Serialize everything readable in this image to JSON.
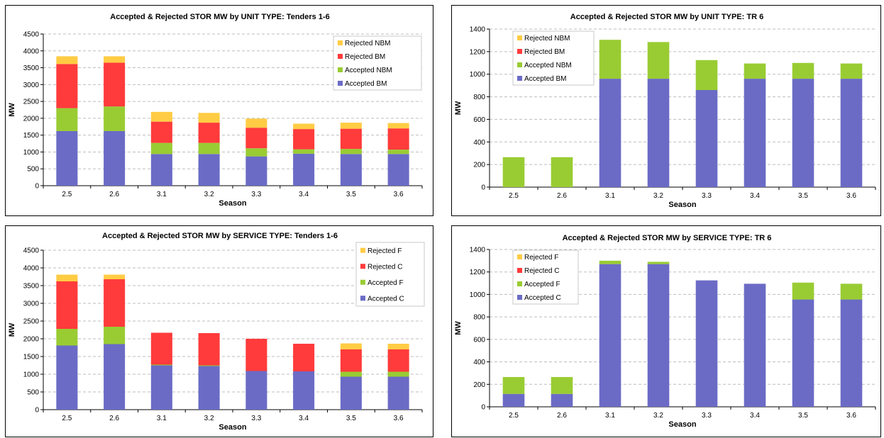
{
  "colors": {
    "accepted_bm": "#6b6bc6",
    "accepted_nbm": "#99cc33",
    "rejected_bm": "#ff3b3b",
    "rejected_nbm": "#ffcc44"
  },
  "chart_data": [
    {
      "type": "bar",
      "stacked": true,
      "title": "Accepted & Rejected STOR MW by UNIT TYPE: Tenders 1-6",
      "xlabel": "Season",
      "ylabel": "MW",
      "ylim": [
        0,
        4500
      ],
      "ystep": 500,
      "grid": true,
      "legend": "top-right",
      "categories": [
        "2.5",
        "2.6",
        "3.1",
        "3.2",
        "3.3",
        "3.4",
        "3.5",
        "3.6"
      ],
      "series": [
        {
          "name": "Accepted BM",
          "color": "#6b6bc6",
          "values": [
            1620,
            1620,
            940,
            940,
            870,
            950,
            940,
            940
          ]
        },
        {
          "name": "Accepted NBM",
          "color": "#99cc33",
          "values": [
            680,
            730,
            330,
            330,
            240,
            130,
            150,
            130
          ]
        },
        {
          "name": "Rejected BM",
          "color": "#ff3b3b",
          "values": [
            1310,
            1300,
            630,
            600,
            610,
            600,
            600,
            630
          ]
        },
        {
          "name": "Rejected NBM",
          "color": "#ffcc44",
          "values": [
            230,
            190,
            290,
            290,
            270,
            160,
            180,
            160
          ]
        }
      ]
    },
    {
      "type": "bar",
      "stacked": true,
      "title": "Accepted & Rejected STOR MW by UNIT TYPE: TR 6",
      "xlabel": "Season",
      "ylabel": "MW",
      "ylim": [
        0,
        1400
      ],
      "ystep": 200,
      "grid": true,
      "legend": "top-left",
      "categories": [
        "2.5",
        "2.6",
        "3.1",
        "3.2",
        "3.3",
        "3.4",
        "3.5",
        "3.6"
      ],
      "series": [
        {
          "name": "Accepted BM",
          "color": "#6b6bc6",
          "values": [
            0,
            0,
            960,
            960,
            860,
            960,
            960,
            960
          ]
        },
        {
          "name": "Accepted NBM",
          "color": "#99cc33",
          "values": [
            265,
            265,
            345,
            325,
            265,
            135,
            140,
            135
          ]
        },
        {
          "name": "Rejected BM",
          "color": "#ff3b3b",
          "values": [
            0,
            0,
            0,
            0,
            0,
            0,
            0,
            0
          ]
        },
        {
          "name": "Rejected NBM",
          "color": "#ffcc44",
          "values": [
            0,
            0,
            0,
            0,
            0,
            0,
            0,
            0
          ]
        }
      ]
    },
    {
      "type": "bar",
      "stacked": true,
      "title": "Accepted & Rejected STOR MW by SERVICE TYPE: Tenders 1-6",
      "xlabel": "Season",
      "ylabel": "MW",
      "ylim": [
        0,
        4500
      ],
      "ystep": 500,
      "grid": true,
      "legend": "top-right",
      "categories": [
        "2.5",
        "2.6",
        "3.1",
        "3.2",
        "3.3",
        "3.4",
        "3.5",
        "3.6"
      ],
      "series": [
        {
          "name": "Accepted C",
          "color": "#6b6bc6",
          "values": [
            1810,
            1850,
            1250,
            1230,
            1090,
            1080,
            930,
            930
          ]
        },
        {
          "name": "Accepted F",
          "color": "#99cc33",
          "values": [
            470,
            490,
            20,
            20,
            0,
            0,
            140,
            140
          ]
        },
        {
          "name": "Rejected C",
          "color": "#ff3b3b",
          "values": [
            1340,
            1340,
            900,
            910,
            910,
            780,
            630,
            630
          ]
        },
        {
          "name": "Rejected F",
          "color": "#ffcc44",
          "values": [
            190,
            130,
            0,
            0,
            0,
            0,
            170,
            160
          ]
        }
      ]
    },
    {
      "type": "bar",
      "stacked": true,
      "title": "Accepted & Rejected STOR MW by SERVICE TYPE: TR 6",
      "xlabel": "Season",
      "ylabel": "MW",
      "ylim": [
        0,
        1400
      ],
      "ystep": 200,
      "grid": true,
      "legend": "top-left",
      "categories": [
        "2.5",
        "2.6",
        "3.1",
        "3.2",
        "3.3",
        "3.4",
        "3.5",
        "3.6"
      ],
      "series": [
        {
          "name": "Accepted C",
          "color": "#6b6bc6",
          "values": [
            115,
            115,
            1270,
            1270,
            1125,
            1095,
            955,
            955
          ]
        },
        {
          "name": "Accepted F",
          "color": "#99cc33",
          "values": [
            150,
            150,
            30,
            20,
            0,
            0,
            150,
            140
          ]
        },
        {
          "name": "Rejected C",
          "color": "#ff3b3b",
          "values": [
            0,
            0,
            0,
            0,
            0,
            0,
            0,
            0
          ]
        },
        {
          "name": "Rejected F",
          "color": "#ffcc44",
          "values": [
            0,
            0,
            0,
            0,
            0,
            0,
            0,
            0
          ]
        }
      ]
    }
  ]
}
